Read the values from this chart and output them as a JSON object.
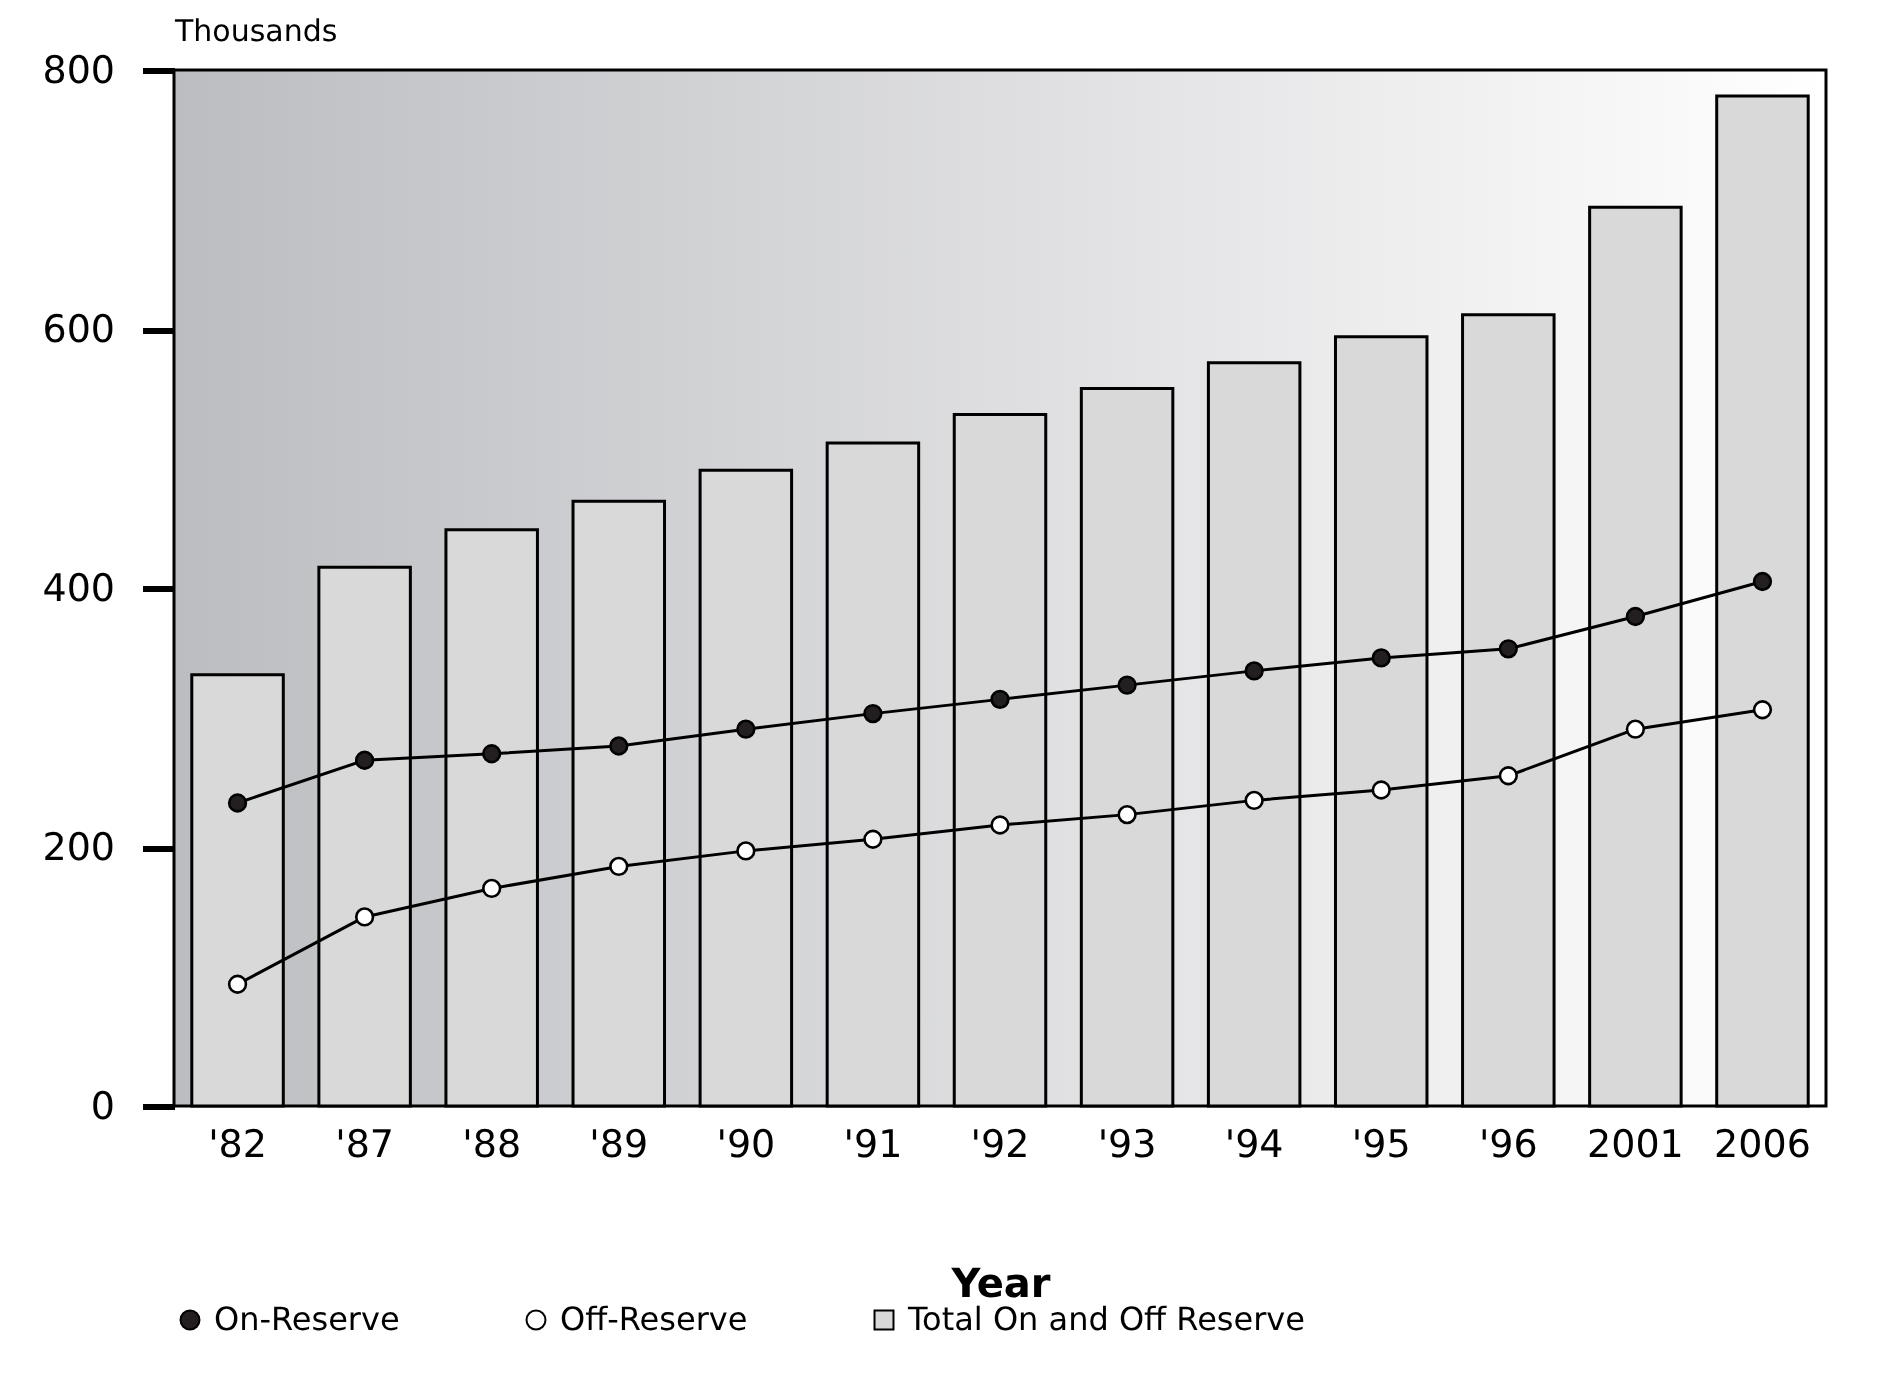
{
  "chart_data": {
    "type": "bar",
    "xlabel": "Year",
    "ylabel": "Thousands",
    "categories": [
      "'82",
      "'87",
      "'88",
      "'89",
      "'90",
      "'91",
      "'92",
      "'93",
      "'94",
      "'95",
      "'96",
      "2001",
      "2006"
    ],
    "series": [
      {
        "name": "On-Reserve",
        "type": "line",
        "color": "#231f20",
        "values": [
          234,
          267,
          272,
          278,
          291,
          303,
          314,
          325,
          336,
          346,
          353,
          378,
          405
        ]
      },
      {
        "name": "Off-Reserve",
        "type": "line",
        "color": "#ffffff",
        "values": [
          94,
          146,
          168,
          185,
          197,
          206,
          217,
          225,
          236,
          244,
          255,
          291,
          306
        ]
      },
      {
        "name": "Total On and Off Reserve",
        "color": "#d9d9d9",
        "values": [
          333,
          416,
          445,
          467,
          491,
          512,
          534,
          554,
          574,
          594,
          611,
          694,
          780
        ]
      }
    ],
    "ylim": [
      0,
      800
    ],
    "yticks": [
      0,
      200,
      400,
      600,
      800
    ],
    "legend": "bottom",
    "marker": "circle",
    "grid": false
  }
}
